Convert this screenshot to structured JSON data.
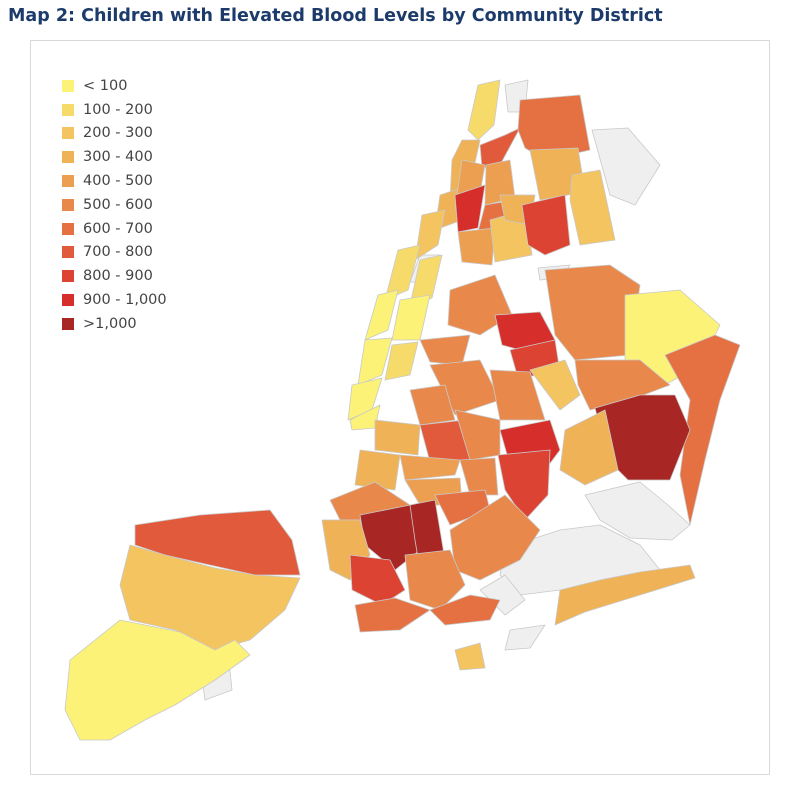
{
  "title": "Map 2: Children with Elevated Blood Levels by Community District",
  "legend": [
    {
      "label": "< 100",
      "color": "#fbf277"
    },
    {
      "label": "100 - 200",
      "color": "#f6db6a"
    },
    {
      "label": "200 - 300",
      "color": "#f3c45f"
    },
    {
      "label": "300 - 400",
      "color": "#efb256"
    },
    {
      "label": "400 - 500",
      "color": "#ec9f50"
    },
    {
      "label": "500 - 600",
      "color": "#e8884a"
    },
    {
      "label": "600 - 700",
      "color": "#e57042"
    },
    {
      "label": "700 - 800",
      "color": "#e15a3b"
    },
    {
      "label": "800 - 900",
      "color": "#dc4333"
    },
    {
      "label": "900 - 1,000",
      "color": "#d62f2b"
    },
    {
      "label": ">1,000",
      "color": "#a82623"
    }
  ],
  "colors": {
    "no_data": "#efefef",
    "border": "#c9c9c9"
  }
}
